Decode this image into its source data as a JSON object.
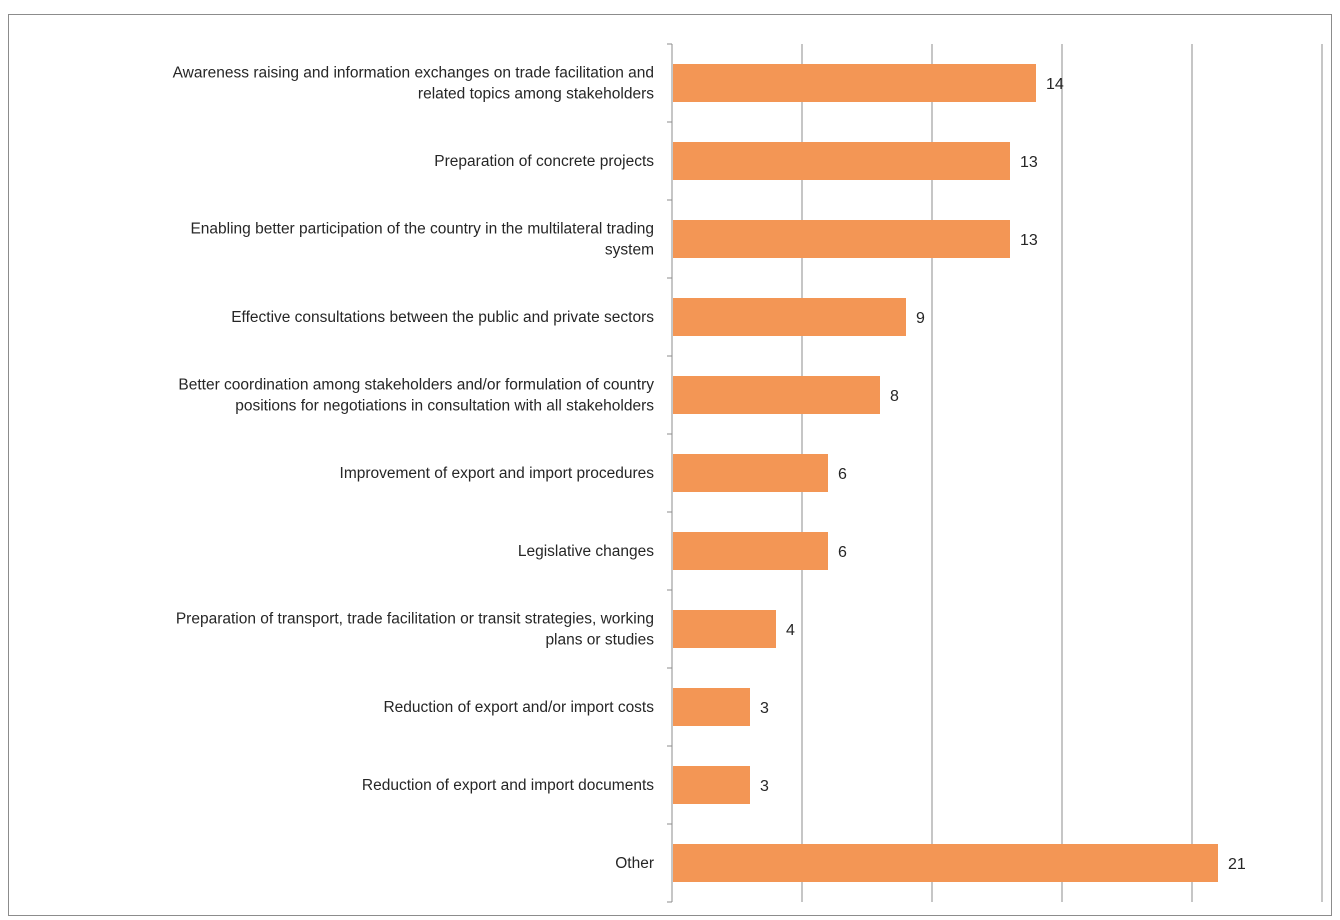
{
  "chart_data": {
    "type": "bar",
    "orientation": "horizontal",
    "categories": [
      "Awareness raising and information exchanges on trade facilitation and related topics among stakeholders",
      "Preparation of concrete projects",
      "Enabling better participation of the country in the multilateral trading system",
      "Effective consultations between the public and private sectors",
      "Better coordination among stakeholders and/or formulation of country positions for negotiations in consultation with all stakeholders",
      "Improvement of export and import procedures",
      "Legislative changes",
      "Preparation of transport, trade facilitation or transit strategies, working plans or studies",
      "Reduction of export and/or import costs",
      "Reduction of export and import documents",
      "Other"
    ],
    "category_lines": [
      [
        "Awareness raising and information exchanges on trade facilitation and",
        "related topics among stakeholders"
      ],
      [
        "Preparation of concrete projects"
      ],
      [
        "Enabling better participation of the country in the multilateral trading",
        "system"
      ],
      [
        "Effective consultations between the public and private sectors"
      ],
      [
        "Better coordination among stakeholders and/or formulation of country",
        "positions for negotiations in consultation with all stakeholders"
      ],
      [
        "Improvement of export and import procedures"
      ],
      [
        "Legislative changes"
      ],
      [
        "Preparation of transport, trade facilitation or transit strategies, working",
        "plans or studies"
      ],
      [
        "Reduction of export and/or import costs"
      ],
      [
        "Reduction of export and import documents"
      ],
      [
        "Other"
      ]
    ],
    "values": [
      14,
      13,
      13,
      9,
      8,
      6,
      6,
      4,
      3,
      3,
      21
    ],
    "data_labels": [
      "14",
      "13",
      "13",
      "9",
      "8",
      "6",
      "6",
      "4",
      "3",
      "3",
      "21"
    ],
    "xlim": [
      0,
      25
    ],
    "x_gridlines": [
      5,
      10,
      15,
      20,
      25
    ],
    "grid": true,
    "x_tick_labels_visible": false,
    "title": "",
    "xlabel": "",
    "ylabel": "",
    "legend": "none",
    "colors": {
      "bar": "#f39655",
      "grid": "#8c8c8c",
      "axis": "#8c8c8c",
      "text": "#262626"
    }
  }
}
